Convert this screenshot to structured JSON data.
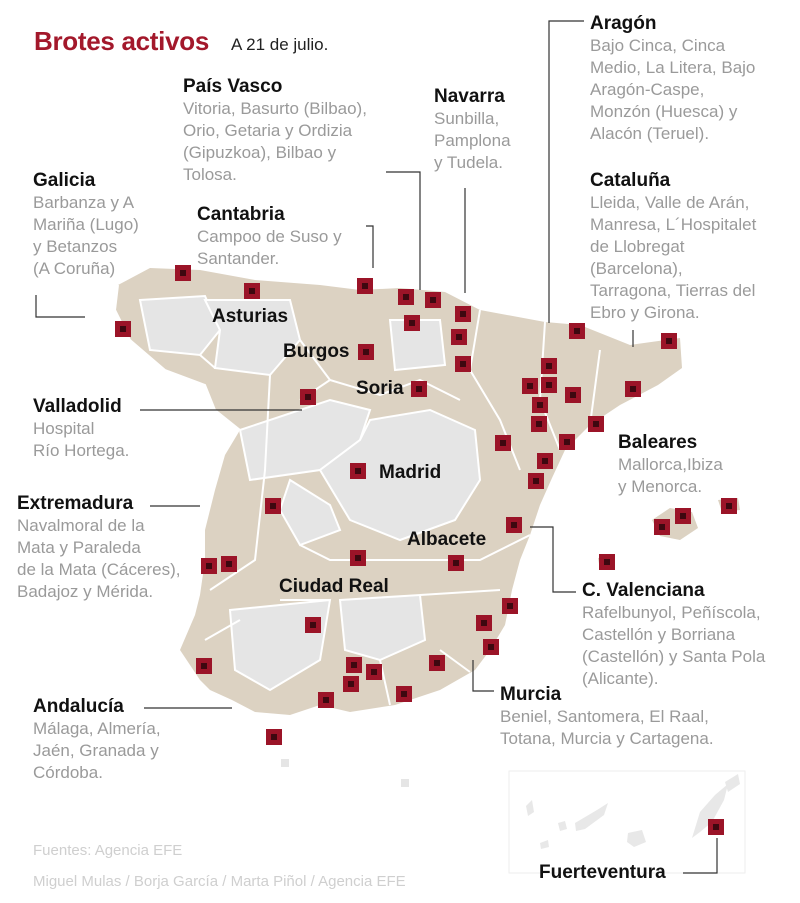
{
  "header": {
    "title": "Brotes activos",
    "date": "A 21 de julio."
  },
  "colors": {
    "accent": "#a3182b",
    "marker_fill": "#9b1428",
    "marker_inner": "#3d0810",
    "affected_region": "#dcd2c2",
    "unaffected_region": "#e5e5e5",
    "border": "#ffffff",
    "leader_line": "#333333",
    "region_text": "#111111",
    "detail_text": "#9a9a9a",
    "source_text": "#cfcfcf"
  },
  "regions": [
    {
      "name": "Aragón",
      "lines": [
        "Bajo Cinca, Cinca",
        "Medio, La Litera, Bajo",
        "Aragón-Caspe,",
        "Monzón (Huesca) y",
        "Alacón (Teruel)."
      ]
    },
    {
      "name": "País Vasco",
      "lines": [
        "Vitoria, Basurto (Bilbao),",
        "Orio, Getaria y Ordizia",
        "(Gipuzkoa), Bilbao y",
        "Tolosa."
      ]
    },
    {
      "name": "Navarra",
      "lines": [
        "Sunbilla,",
        "Pamplona",
        "y Tudela."
      ]
    },
    {
      "name": "Galicia",
      "lines": [
        "Barbanza y A",
        "Mariña (Lugo)",
        "y Betanzos",
        "(A Coruña)"
      ]
    },
    {
      "name": "Cantabria",
      "lines": [
        "Campoo de Suso y",
        "Santander."
      ]
    },
    {
      "name": "Cataluña",
      "lines": [
        "Lleida, Valle de Arán,",
        "Manresa, L´Hospitalet",
        "de Llobregat",
        "(Barcelona),",
        "Tarragona, Tierras del",
        "Ebro y Girona."
      ]
    },
    {
      "name": "Valladolid",
      "lines": [
        "Hospital",
        "Río Hortega."
      ]
    },
    {
      "name": "Baleares",
      "lines": [
        "Mallorca,Ibiza",
        "y Menorca."
      ]
    },
    {
      "name": "Extremadura",
      "lines": [
        "Navalmoral de la",
        "Mata y Paraleda",
        "de la Mata (Cáceres),",
        "Badajoz y Mérida."
      ]
    },
    {
      "name": "C. Valenciana",
      "lines": [
        "Rafelbunyol, Peñíscola,",
        "Castellón y Borriana",
        "(Castellón) y Santa Pola",
        "(Alicante)."
      ]
    },
    {
      "name": "Andalucía",
      "lines": [
        "Málaga, Almería,",
        "Jaén, Granada y",
        "Córdoba."
      ]
    },
    {
      "name": "Murcia",
      "lines": [
        "Beniel, Santomera, El Raal,",
        "Totana, Murcia y Cartagena."
      ]
    },
    {
      "name": "Fuerteventura",
      "lines": []
    }
  ],
  "map_labels": [
    "Asturias",
    "Burgos",
    "Soria",
    "Madrid",
    "Albacete",
    "Ciudad Real"
  ],
  "sources": [
    "Fuentes: Agencia EFE",
    "Miguel Mulas / Borja García / Marta Piñol / Agencia EFE"
  ],
  "outbreak_count": 53
}
